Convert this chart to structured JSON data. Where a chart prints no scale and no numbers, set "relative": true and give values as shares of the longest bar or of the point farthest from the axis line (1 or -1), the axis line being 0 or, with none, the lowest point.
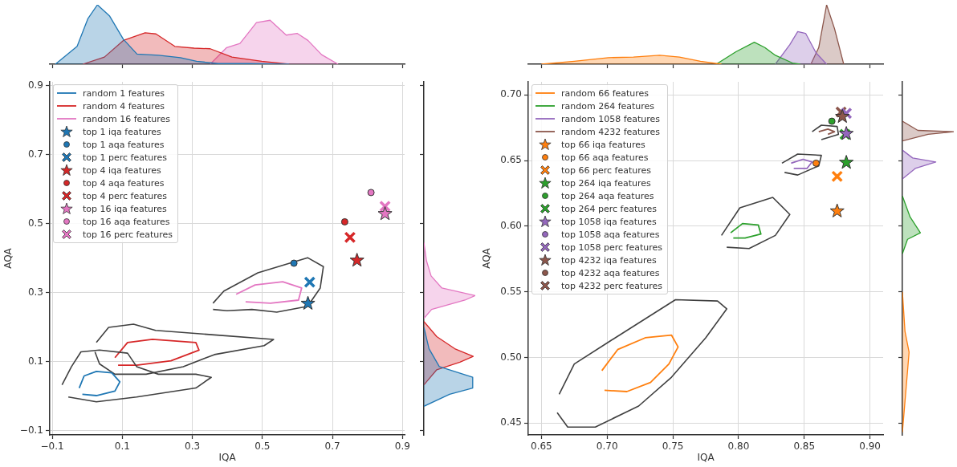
{
  "chart_data": [
    {
      "type": "line",
      "xlabel": "IQA",
      "ylabel": "AQA",
      "xlim": [
        -0.107,
        0.906
      ],
      "ylim": [
        -0.113,
        0.911
      ],
      "xticks": [
        {
          "value": -0.1,
          "label": "−0.1"
        },
        0.1,
        0.3,
        0.5,
        0.7,
        0.9
      ],
      "yticks": [
        {
          "value": -0.1,
          "label": "−0.1"
        },
        0.1,
        0.3,
        0.5,
        0.7,
        0.9
      ],
      "grid": true,
      "legend": "top left",
      "series": [
        {
          "type": "line",
          "color": "#404040",
          "x": [
            -0.072,
            -0.045,
            -0.018,
            0.035,
            0.115,
            0.141,
            0.203,
            0.31,
            0.354,
            0.31,
            0.141,
            0.026,
            -0.054
          ],
          "values": [
            0.032,
            0.085,
            0.128,
            0.133,
            0.124,
            0.085,
            0.063,
            0.063,
            0.054,
            0.023,
            -0.003,
            -0.017,
            -0.003
          ]
        },
        {
          "type": "line",
          "name": "random 1 features",
          "color": "#1f77b4",
          "x": [
            -0.023,
            -0.009,
            0.026,
            0.07,
            0.093,
            0.079,
            0.026,
            -0.014
          ],
          "values": [
            0.023,
            0.058,
            0.071,
            0.067,
            0.041,
            0.014,
            0.001,
            0.005
          ]
        },
        {
          "type": "line",
          "color": "#404040",
          "x": [
            0.026,
            0.061,
            0.132,
            0.195,
            0.363,
            0.532,
            0.505,
            0.363,
            0.274,
            0.168,
            0.079,
            0.035,
            0.022
          ],
          "values": [
            0.155,
            0.199,
            0.208,
            0.19,
            0.177,
            0.164,
            0.146,
            0.12,
            0.085,
            0.063,
            0.063,
            0.093,
            0.128
          ]
        },
        {
          "type": "line",
          "name": "random 4 features",
          "color": "#d62728",
          "x": [
            0.079,
            0.115,
            0.186,
            0.31,
            0.319,
            0.239,
            0.141,
            0.088
          ],
          "values": [
            0.111,
            0.155,
            0.164,
            0.155,
            0.133,
            0.102,
            0.089,
            0.089
          ]
        },
        {
          "type": "line",
          "color": "#404040",
          "x": [
            0.359,
            0.39,
            0.487,
            0.629,
            0.674,
            0.665,
            0.629,
            0.541,
            0.47,
            0.399,
            0.359
          ],
          "values": [
            0.269,
            0.304,
            0.357,
            0.401,
            0.375,
            0.313,
            0.26,
            0.243,
            0.251,
            0.247,
            0.251
          ]
        },
        {
          "type": "line",
          "name": "random 16 features",
          "color": "#e377c2",
          "x": [
            0.425,
            0.479,
            0.558,
            0.612,
            0.603,
            0.523,
            0.452
          ],
          "values": [
            0.295,
            0.322,
            0.331,
            0.313,
            0.278,
            0.269,
            0.273
          ]
        },
        {
          "type": "scatter",
          "name": "top 1 iqa features",
          "color": "#1f77b4",
          "marker": "star",
          "x": [
            0.63
          ],
          "values": [
            0.27
          ]
        },
        {
          "type": "scatter",
          "name": "top 1 aqa features",
          "color": "#1f77b4",
          "marker": "circle",
          "x": [
            0.59
          ],
          "values": [
            0.385
          ]
        },
        {
          "type": "scatter",
          "name": "top 1 perc features",
          "color": "#1f77b4",
          "marker": "cross",
          "x": [
            0.635
          ],
          "values": [
            0.33
          ]
        },
        {
          "type": "scatter",
          "name": "top 4 iqa features",
          "color": "#d62728",
          "marker": "star",
          "x": [
            0.77
          ],
          "values": [
            0.395
          ]
        },
        {
          "type": "scatter",
          "name": "top 4 aqa features",
          "color": "#d62728",
          "marker": "circle",
          "x": [
            0.735
          ],
          "values": [
            0.505
          ]
        },
        {
          "type": "scatter",
          "name": "top 4 perc features",
          "color": "#d62728",
          "marker": "cross",
          "x": [
            0.75
          ],
          "values": [
            0.46
          ]
        },
        {
          "type": "scatter",
          "name": "top 16 iqa features",
          "color": "#e377c2",
          "marker": "star",
          "x": [
            0.85
          ],
          "values": [
            0.53
          ]
        },
        {
          "type": "scatter",
          "name": "top 16 aqa features",
          "color": "#e377c2",
          "marker": "circle",
          "x": [
            0.81
          ],
          "values": [
            0.59
          ]
        },
        {
          "type": "scatter",
          "name": "top 16 perc features",
          "color": "#e377c2",
          "marker": "cross",
          "x": [
            0.85
          ],
          "values": [
            0.55
          ]
        }
      ]
    },
    {
      "type": "area",
      "relative": true,
      "xlim": [
        -0.107,
        0.906
      ],
      "xticks": [
        -0.1,
        0.1,
        0.3,
        0.5,
        0.7,
        0.9
      ],
      "tick_labels": false,
      "series": [
        {
          "color": "#1f77b4",
          "x": [
            -0.091,
            -0.029,
            0.002,
            0.029,
            0.064,
            0.103,
            0.142,
            0.204,
            0.266,
            0.312,
            0.374,
            0.46,
            0.576
          ],
          "values": [
            0,
            0.3,
            0.77,
            1,
            0.81,
            0.42,
            0.17,
            0.15,
            0.11,
            0.05,
            0.01,
            0.01,
            0
          ]
        },
        {
          "color": "#d62728",
          "x": [
            -0.013,
            0.049,
            0.103,
            0.165,
            0.196,
            0.25,
            0.305,
            0.351,
            0.413,
            0.498,
            0.576
          ],
          "values": [
            0,
            0.12,
            0.4,
            0.53,
            0.51,
            0.3,
            0.27,
            0.26,
            0.12,
            0.05,
            0
          ]
        },
        {
          "color": "#e377c2",
          "x": [
            0.351,
            0.398,
            0.436,
            0.483,
            0.522,
            0.568,
            0.599,
            0.63,
            0.669,
            0.716
          ],
          "values": [
            0,
            0.28,
            0.35,
            0.7,
            0.74,
            0.49,
            0.52,
            0.4,
            0.16,
            0
          ]
        }
      ]
    },
    {
      "type": "area",
      "relative": true,
      "orientation": "horizontal",
      "ylim": [
        -0.113,
        0.911
      ],
      "yticks": [
        -0.1,
        0.1,
        0.3,
        0.5,
        0.7,
        0.9
      ],
      "tick_labels": false,
      "series": [
        {
          "color": "#1f77b4",
          "x": [
            0.199,
            0.137,
            0.085,
            0.054,
            0.023,
            0.005,
            -0.03
          ],
          "values": [
            0,
            0.1,
            0.3,
            0.95,
            0.95,
            0.5,
            0
          ]
        },
        {
          "color": "#d62728",
          "x": [
            0.216,
            0.172,
            0.137,
            0.115,
            0.098,
            0.076,
            0.032
          ],
          "values": [
            0,
            0.25,
            0.6,
            0.96,
            0.7,
            0.25,
            0
          ]
        },
        {
          "color": "#e377c2",
          "x": [
            0.445,
            0.392,
            0.348,
            0.313,
            0.291,
            0.278,
            0.251,
            0.225
          ],
          "values": [
            0,
            0.05,
            0.14,
            0.35,
            1,
            0.8,
            0.15,
            0
          ]
        }
      ]
    },
    {
      "type": "line",
      "xlabel": "IQA",
      "ylabel": "AQA",
      "xlim": [
        0.64,
        0.91
      ],
      "ylim": [
        0.441,
        0.71
      ],
      "xticks": [
        0.65,
        {
          "value": 0.7,
          "label": "0.70"
        },
        0.75,
        {
          "value": 0.8,
          "label": "0.80"
        },
        0.85,
        {
          "value": 0.9,
          "label": "0.90"
        }
      ],
      "yticks": [
        0.45,
        {
          "value": 0.5,
          "label": "0.50"
        },
        0.55,
        {
          "value": 0.6,
          "label": "0.60"
        },
        0.65,
        {
          "value": 0.7,
          "label": "0.70"
        }
      ],
      "grid": true,
      "legend": "top left",
      "series": [
        {
          "type": "line",
          "color": "#404040",
          "x": [
            0.6635,
            0.675,
            0.703,
            0.752,
            0.784,
            0.791,
            0.775,
            0.749,
            0.724,
            0.691,
            0.67,
            0.662
          ],
          "values": [
            0.472,
            0.495,
            0.513,
            0.544,
            0.543,
            0.537,
            0.515,
            0.485,
            0.463,
            0.447,
            0.447,
            0.458
          ]
        },
        {
          "type": "line",
          "name": "random 66 features",
          "color": "#ff7f0e",
          "x": [
            0.696,
            0.708,
            0.729,
            0.749,
            0.754,
            0.747,
            0.733,
            0.715,
            0.698
          ],
          "values": [
            0.49,
            0.506,
            0.515,
            0.517,
            0.508,
            0.495,
            0.481,
            0.474,
            0.475
          ]
        },
        {
          "type": "line",
          "color": "#404040",
          "x": [
            0.787,
            0.801,
            0.826,
            0.839,
            0.828,
            0.808,
            0.791
          ],
          "values": [
            0.593,
            0.614,
            0.622,
            0.609,
            0.593,
            0.583,
            0.584
          ]
        },
        {
          "type": "line",
          "name": "random 264 features",
          "color": "#2ca02c",
          "x": [
            0.794,
            0.803,
            0.815,
            0.817,
            0.805,
            0.796
          ],
          "values": [
            0.595,
            0.602,
            0.601,
            0.594,
            0.591,
            0.591
          ]
        },
        {
          "type": "line",
          "color": "#404040",
          "x": [
            0.833,
            0.845,
            0.863,
            0.861,
            0.845,
            0.835
          ],
          "values": [
            0.648,
            0.655,
            0.654,
            0.646,
            0.639,
            0.641
          ]
        },
        {
          "type": "line",
          "name": "random 1058 features",
          "color": "#9467bd",
          "x": [
            0.84,
            0.849,
            0.856,
            0.852,
            0.842
          ],
          "values": [
            0.648,
            0.651,
            0.649,
            0.644,
            0.644
          ]
        },
        {
          "type": "line",
          "color": "#404040",
          "x": [
            0.856,
            0.863,
            0.875,
            0.876,
            0.863
          ],
          "values": [
            0.672,
            0.677,
            0.676,
            0.67,
            0.666
          ]
        },
        {
          "type": "line",
          "name": "random 4232 features",
          "color": "#8c564b",
          "x": [
            0.861,
            0.868,
            0.873,
            0.868
          ],
          "values": [
            0.672,
            0.674,
            0.672,
            0.67
          ]
        },
        {
          "type": "scatter",
          "name": "top 66 iqa features",
          "color": "#ff7f0e",
          "marker": "star",
          "x": [
            0.875
          ],
          "values": [
            0.612
          ]
        },
        {
          "type": "scatter",
          "name": "top 66 aqa features",
          "color": "#ff7f0e",
          "marker": "circle",
          "x": [
            0.859
          ],
          "values": [
            0.648
          ]
        },
        {
          "type": "scatter",
          "name": "top 66 perc features",
          "color": "#ff7f0e",
          "marker": "cross",
          "x": [
            0.875
          ],
          "values": [
            0.638
          ]
        },
        {
          "type": "scatter",
          "name": "top 264 iqa features",
          "color": "#2ca02c",
          "marker": "star",
          "x": [
            0.882
          ],
          "values": [
            0.649
          ]
        },
        {
          "type": "scatter",
          "name": "top 264 aqa features",
          "color": "#2ca02c",
          "marker": "circle",
          "x": [
            0.871
          ],
          "values": [
            0.68
          ]
        },
        {
          "type": "scatter",
          "name": "top 264 perc features",
          "color": "#2ca02c",
          "marker": "cross",
          "x": [
            0.881
          ],
          "values": [
            0.67
          ]
        },
        {
          "type": "scatter",
          "name": "top 1058 iqa features",
          "color": "#9467bd",
          "marker": "star",
          "x": [
            0.882
          ],
          "values": [
            0.671
          ]
        },
        {
          "type": "scatter",
          "name": "top 1058 aqa features",
          "color": "#9467bd",
          "marker": "circle",
          "x": [
            null
          ],
          "values": [
            null
          ]
        },
        {
          "type": "scatter",
          "name": "top 1058 perc features",
          "color": "#9467bd",
          "marker": "cross",
          "x": [
            0.882
          ],
          "values": [
            0.686
          ]
        },
        {
          "type": "scatter",
          "name": "top 4232 iqa features",
          "color": "#8c564b",
          "marker": "star",
          "x": [
            0.879
          ],
          "values": [
            0.684
          ]
        },
        {
          "type": "scatter",
          "name": "top 4232 aqa features",
          "color": "#8c564b",
          "marker": "circle",
          "x": [
            null
          ],
          "values": [
            null
          ]
        },
        {
          "type": "scatter",
          "name": "top 4232 perc features",
          "color": "#8c564b",
          "marker": "cross",
          "x": [
            0.878
          ],
          "values": [
            0.687
          ]
        }
      ]
    },
    {
      "type": "area",
      "relative": true,
      "xlim": [
        0.64,
        0.91
      ],
      "xticks": [
        0.65,
        0.7,
        0.75,
        0.8,
        0.85,
        0.9
      ],
      "tick_labels": false,
      "series": [
        {
          "color": "#ff7f0e",
          "x": [
            0.65,
            0.675,
            0.701,
            0.72,
            0.74,
            0.755,
            0.771,
            0.787
          ],
          "values": [
            0,
            0.05,
            0.11,
            0.12,
            0.15,
            0.12,
            0.05,
            0
          ]
        },
        {
          "color": "#2ca02c",
          "x": [
            0.783,
            0.798,
            0.812,
            0.82,
            0.828,
            0.841,
            0.847
          ],
          "values": [
            0,
            0.21,
            0.37,
            0.28,
            0.15,
            0.02,
            0
          ]
        },
        {
          "color": "#9467bd",
          "x": [
            0.828,
            0.839,
            0.845,
            0.851,
            0.859,
            0.867
          ],
          "values": [
            0,
            0.33,
            0.55,
            0.52,
            0.19,
            0
          ]
        },
        {
          "color": "#8c564b",
          "x": [
            0.855,
            0.861,
            0.867,
            0.873,
            0.88
          ],
          "values": [
            0,
            0.28,
            1,
            0.6,
            0
          ]
        }
      ]
    },
    {
      "type": "area",
      "relative": true,
      "orientation": "horizontal",
      "ylim": [
        0.441,
        0.71
      ],
      "yticks": [
        0.45,
        0.5,
        0.55,
        0.6,
        0.65,
        0.7
      ],
      "tick_labels": false,
      "series": [
        {
          "color": "#ff7f0e",
          "x": [
            0.55,
            0.52,
            0.504,
            0.485,
            0.443
          ],
          "values": [
            0,
            0.05,
            0.13,
            0.09,
            0
          ]
        },
        {
          "color": "#2ca02c",
          "x": [
            0.623,
            0.607,
            0.595,
            0.59,
            0.579
          ],
          "values": [
            0,
            0.15,
            0.35,
            0.1,
            0
          ]
        },
        {
          "color": "#9467bd",
          "x": [
            0.658,
            0.652,
            0.649,
            0.644,
            0.636
          ],
          "values": [
            0,
            0.2,
            0.65,
            0.25,
            0
          ]
        },
        {
          "color": "#8c564b",
          "x": [
            0.68,
            0.673,
            0.672,
            0.67,
            0.665
          ],
          "values": [
            0,
            0.3,
            1,
            0.5,
            0
          ]
        }
      ]
    }
  ]
}
